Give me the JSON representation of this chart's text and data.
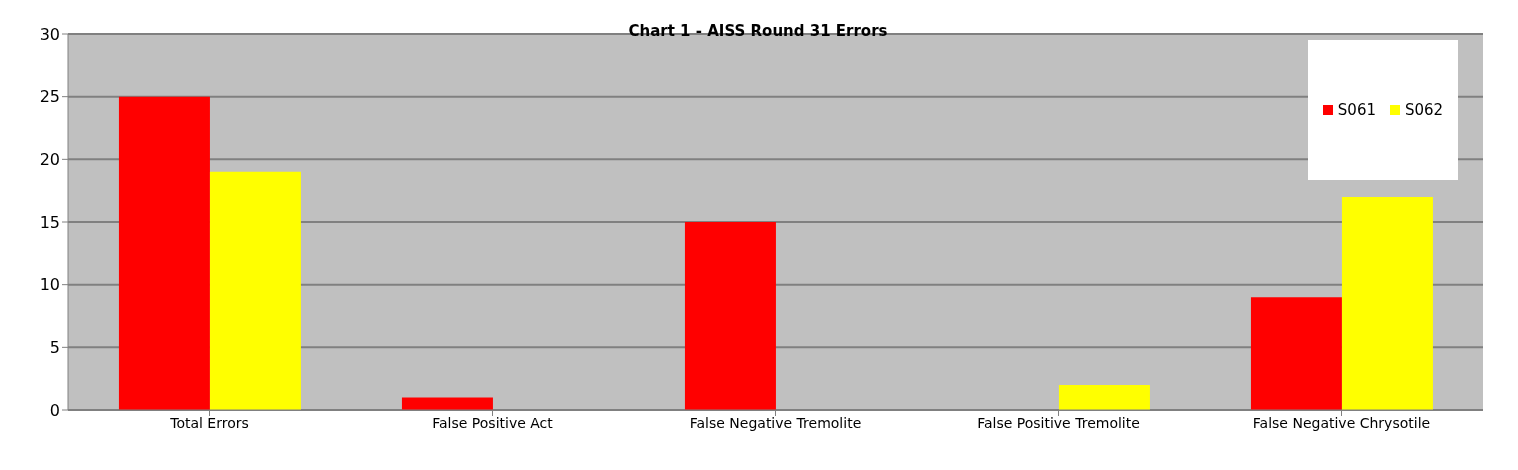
{
  "chart_data": {
    "type": "bar",
    "title": "Chart 1 - AISS Round 31 Errors",
    "categories": [
      "Total Errors",
      "False Positive Act",
      "False Negative Tremolite",
      "False Positive Tremolite",
      "False Negative Chrysotile"
    ],
    "series": [
      {
        "name": "S061",
        "color": "#ff0000",
        "values": [
          25,
          1,
          15,
          0,
          9
        ]
      },
      {
        "name": "S062",
        "color": "#ffff00",
        "values": [
          19,
          0,
          0,
          2,
          17
        ]
      }
    ],
    "ylim": [
      0,
      30
    ],
    "yticks": [
      0,
      5,
      10,
      15,
      20,
      25,
      30
    ],
    "grid": "y",
    "legend": "top right"
  }
}
